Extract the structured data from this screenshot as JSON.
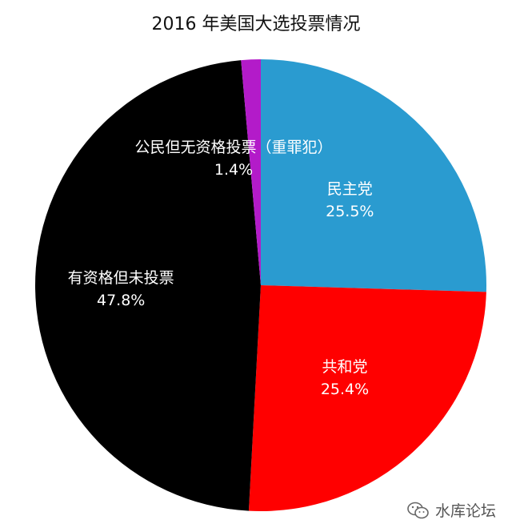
{
  "chart_data": {
    "type": "pie",
    "title": "2016 年美国大选投票情况",
    "start_angle_deg": -90,
    "direction": "clockwise",
    "slices": [
      {
        "label": "民主党",
        "value": 25.5,
        "display": "25.5%",
        "color": "#2a9bd0"
      },
      {
        "label": "共和党",
        "value": 25.4,
        "display": "25.4%",
        "color": "#ff0000"
      },
      {
        "label": "有资格但未投票",
        "value": 47.8,
        "display": "47.8%",
        "color": "#000000"
      },
      {
        "label": "公民但无资格投票（重罪犯）",
        "value": 1.4,
        "display": "1.4%",
        "color": "#b31bc9"
      }
    ]
  },
  "watermark": {
    "text": "水库论坛",
    "icon": "wechat-icon"
  }
}
